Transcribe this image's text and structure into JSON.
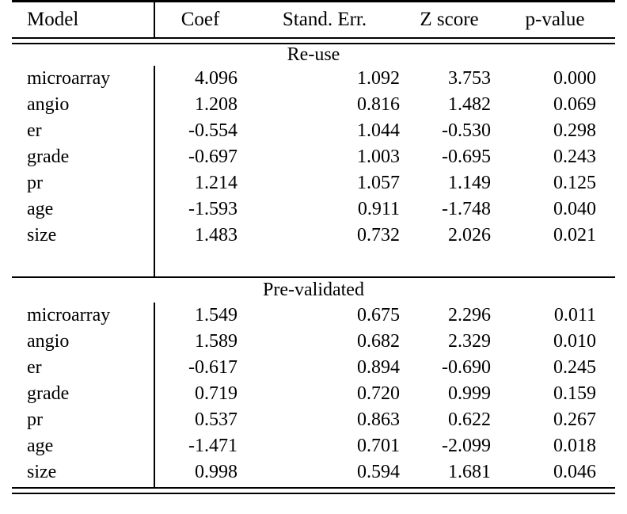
{
  "page": {
    "background_color": "#ffffff",
    "text_color": "#000000",
    "rule_color": "#000000"
  },
  "table": {
    "columns": [
      "Model",
      "Coef",
      "Stand. Err.",
      "Z score",
      "p-value"
    ],
    "sections": [
      {
        "title": "Re-use",
        "rows": [
          [
            "microarray",
            "4.096",
            "1.092",
            "3.753",
            "0.000"
          ],
          [
            "angio",
            "1.208",
            "0.816",
            "1.482",
            "0.069"
          ],
          [
            "er",
            "-0.554",
            "1.044",
            "-0.530",
            "0.298"
          ],
          [
            "grade",
            "-0.697",
            "1.003",
            "-0.695",
            "0.243"
          ],
          [
            "pr",
            "1.214",
            "1.057",
            "1.149",
            "0.125"
          ],
          [
            "age",
            "-1.593",
            "0.911",
            "-1.748",
            "0.040"
          ],
          [
            "size",
            "1.483",
            "0.732",
            "2.026",
            "0.021"
          ]
        ]
      },
      {
        "title": "Pre-validated",
        "rows": [
          [
            "microarray",
            "1.549",
            "0.675",
            "2.296",
            "0.011"
          ],
          [
            "angio",
            "1.589",
            "0.682",
            "2.329",
            "0.010"
          ],
          [
            "er",
            "-0.617",
            "0.894",
            "-0.690",
            "0.245"
          ],
          [
            "grade",
            "0.719",
            "0.720",
            "0.999",
            "0.159"
          ],
          [
            "pr",
            "0.537",
            "0.863",
            "0.622",
            "0.267"
          ],
          [
            "age",
            "-1.471",
            "0.701",
            "-2.099",
            "0.018"
          ],
          [
            "size",
            "0.998",
            "0.594",
            "1.681",
            "0.046"
          ]
        ]
      }
    ]
  },
  "chart_data": {
    "type": "table",
    "title": "",
    "columns": [
      "Model",
      "Coef",
      "Stand. Err.",
      "Z score",
      "p-value"
    ],
    "groups": [
      {
        "name": "Re-use",
        "rows": {
          "microarray": [
            4.096,
            1.092,
            3.753,
            0.0
          ],
          "angio": [
            1.208,
            0.816,
            1.482,
            0.069
          ],
          "er": [
            -0.554,
            1.044,
            -0.53,
            0.298
          ],
          "grade": [
            -0.697,
            1.003,
            -0.695,
            0.243
          ],
          "pr": [
            1.214,
            1.057,
            1.149,
            0.125
          ],
          "age": [
            -1.593,
            0.911,
            -1.748,
            0.04
          ],
          "size": [
            1.483,
            0.732,
            2.026,
            0.021
          ]
        }
      },
      {
        "name": "Pre-validated",
        "rows": {
          "microarray": [
            1.549,
            0.675,
            2.296,
            0.011
          ],
          "angio": [
            1.589,
            0.682,
            2.329,
            0.01
          ],
          "er": [
            -0.617,
            0.894,
            -0.69,
            0.245
          ],
          "grade": [
            0.719,
            0.72,
            0.999,
            0.159
          ],
          "pr": [
            0.537,
            0.863,
            0.622,
            0.267
          ],
          "age": [
            -1.471,
            0.701,
            -2.099,
            0.018
          ],
          "size": [
            0.998,
            0.594,
            1.681,
            0.046
          ]
        }
      }
    ]
  }
}
